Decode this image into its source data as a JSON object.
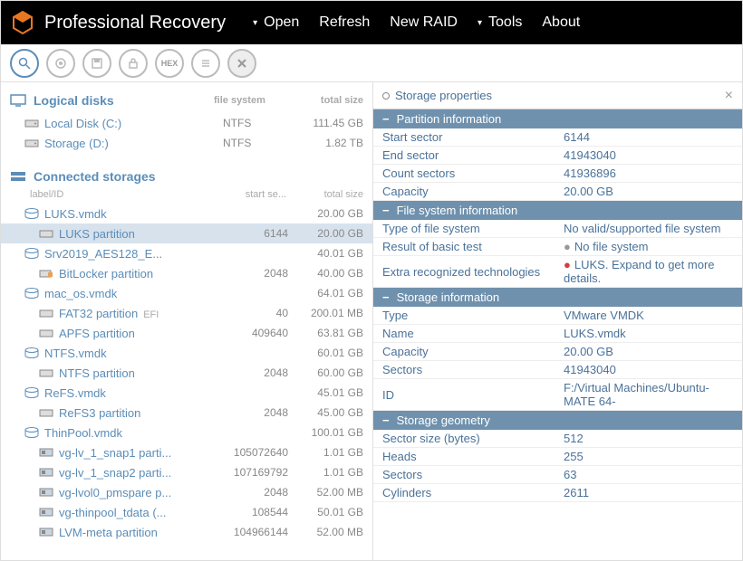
{
  "app": {
    "title": "Professional Recovery"
  },
  "menu": {
    "open": "Open",
    "refresh": "Refresh",
    "newraid": "New RAID",
    "tools": "Tools",
    "about": "About"
  },
  "logical": {
    "title": "Logical disks",
    "cols": {
      "fs": "file system",
      "size": "total size"
    },
    "rows": [
      {
        "name": "Local Disk (C:)",
        "fs": "NTFS",
        "size": "111.45 GB"
      },
      {
        "name": "Storage (D:)",
        "fs": "NTFS",
        "size": "1.82 TB"
      }
    ]
  },
  "connected": {
    "title": "Connected storages",
    "cols": {
      "label": "label/ID",
      "start": "start se...",
      "size": "total size"
    },
    "rows": [
      {
        "ind": 1,
        "icon": "disk",
        "name": "LUKS.vmdk",
        "v2": "",
        "v3": "20.00 GB",
        "sel": false
      },
      {
        "ind": 2,
        "icon": "part",
        "name": "LUKS partition",
        "v2": "6144",
        "v3": "20.00 GB",
        "sel": true
      },
      {
        "ind": 1,
        "icon": "disk",
        "name": "Srv2019_AES128_E...",
        "v2": "",
        "v3": "40.01 GB"
      },
      {
        "ind": 2,
        "icon": "part-lock",
        "name": "BitLocker partition",
        "v2": "2048",
        "v3": "40.00 GB"
      },
      {
        "ind": 1,
        "icon": "disk",
        "name": "mac_os.vmdk",
        "v2": "",
        "v3": "64.01 GB"
      },
      {
        "ind": 2,
        "icon": "part",
        "name": "FAT32 partition",
        "label": "EFI",
        "v2": "40",
        "v3": "200.01 MB"
      },
      {
        "ind": 2,
        "icon": "part",
        "name": "APFS partition",
        "v2": "409640",
        "v3": "63.81 GB"
      },
      {
        "ind": 1,
        "icon": "disk",
        "name": "NTFS.vmdk",
        "v2": "",
        "v3": "60.01 GB"
      },
      {
        "ind": 2,
        "icon": "part",
        "name": "NTFS partition",
        "v2": "2048",
        "v3": "60.00 GB"
      },
      {
        "ind": 1,
        "icon": "disk",
        "name": "ReFS.vmdk",
        "v2": "",
        "v3": "45.01 GB"
      },
      {
        "ind": 2,
        "icon": "part",
        "name": "ReFS3 partition",
        "v2": "2048",
        "v3": "45.00 GB"
      },
      {
        "ind": 1,
        "icon": "disk",
        "name": "ThinPool.vmdk",
        "v2": "",
        "v3": "100.01 GB"
      },
      {
        "ind": 2,
        "icon": "vol",
        "name": "vg-lv_1_snap1 parti...",
        "v2": "105072640",
        "v3": "1.01 GB"
      },
      {
        "ind": 2,
        "icon": "vol",
        "name": "vg-lv_1_snap2 parti...",
        "v2": "107169792",
        "v3": "1.01 GB"
      },
      {
        "ind": 2,
        "icon": "vol",
        "name": "vg-lvol0_pmspare p...",
        "v2": "2048",
        "v3": "52.00 MB"
      },
      {
        "ind": 2,
        "icon": "vol",
        "name": "vg-thinpool_tdata (...",
        "v2": "108544",
        "v3": "50.01 GB"
      },
      {
        "ind": 2,
        "icon": "vol",
        "name": "LVM-meta partition",
        "v2": "104966144",
        "v3": "52.00 MB"
      }
    ]
  },
  "panel": {
    "tab": "Storage properties",
    "groups": [
      {
        "title": "Partition information",
        "rows": [
          {
            "k": "Start sector",
            "v": "6144"
          },
          {
            "k": "End sector",
            "v": "41943040"
          },
          {
            "k": "Count sectors",
            "v": "41936896"
          },
          {
            "k": "Capacity",
            "v": "20.00 GB"
          }
        ]
      },
      {
        "title": "File system information",
        "rows": [
          {
            "k": "Type of file system",
            "v": "No valid/supported file system"
          },
          {
            "k": "Result of basic test",
            "v": "No file system",
            "dot": "gray"
          },
          {
            "k": "Extra recognized technologies",
            "v": "LUKS. Expand to get more details.",
            "dot": "red"
          }
        ]
      },
      {
        "title": "Storage information",
        "rows": [
          {
            "k": "Type",
            "v": "VMware VMDK"
          },
          {
            "k": "Name",
            "v": "LUKS.vmdk"
          },
          {
            "k": "Capacity",
            "v": "20.00 GB"
          },
          {
            "k": "Sectors",
            "v": "41943040"
          },
          {
            "k": "ID",
            "v": "F:/Virtual Machines/Ubuntu-MATE 64-"
          }
        ]
      },
      {
        "title": "Storage geometry",
        "rows": [
          {
            "k": "Sector size (bytes)",
            "v": "512"
          },
          {
            "k": "Heads",
            "v": "255"
          },
          {
            "k": "Sectors",
            "v": "63"
          },
          {
            "k": "Cylinders",
            "v": "2611"
          }
        ]
      }
    ]
  },
  "style": {
    "accent": "#5b8db8",
    "grpbg": "#6f91ad",
    "selbg": "#d7e2ed"
  }
}
